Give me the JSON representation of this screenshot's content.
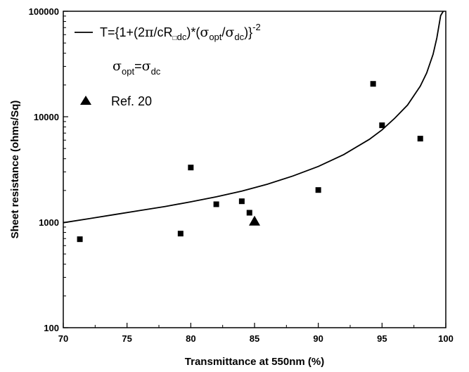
{
  "chart_data": {
    "type": "scatter",
    "title": "",
    "xlabel": "Transmittance at 550nm (%)",
    "ylabel": "Sheet resistance (ohms/Sq)",
    "xlim": [
      70,
      100
    ],
    "ylim": [
      100,
      100000
    ],
    "yscale": "log",
    "xticks": [
      "70",
      "75",
      "80",
      "85",
      "90",
      "95",
      "100"
    ],
    "yticks": [
      "100",
      "1000",
      "10000",
      "100000"
    ],
    "grid": false,
    "legend_position": "top-left",
    "series": [
      {
        "kind": "line",
        "label_parts": {
          "prefix": "T={1+(2",
          "pi": "π",
          "c_over": "/cR",
          "square": "□",
          "dc1": "dc",
          "mid": ")*(",
          "sigma1": "σ",
          "opt1": "opt",
          "slash": "/",
          "sigma2": "σ",
          "dc2": "dc",
          "close": ")}",
          "exp": "-2"
        },
        "condition_parts": {
          "sigma1": "σ",
          "opt": "opt",
          "eq": "=",
          "sigma2": "σ",
          "dc": "dc"
        },
        "x": [
          70,
          72,
          74,
          76,
          78,
          80,
          82,
          84,
          86,
          88,
          90,
          92,
          94,
          95,
          96,
          97,
          98,
          98.5,
          99,
          99.3,
          99.6,
          99.8
        ],
        "y": [
          990,
          1080,
          1180,
          1290,
          1410,
          1560,
          1740,
          1970,
          2290,
          2740,
          3380,
          4380,
          6100,
          7500,
          9700,
          12900,
          19500,
          26000,
          39000,
          56000,
          91000,
          100000
        ]
      },
      {
        "kind": "points",
        "marker": "square",
        "x": [
          71.3,
          79.2,
          80.0,
          82.0,
          84.0,
          84.6,
          90.0,
          94.3,
          95.0,
          98.0
        ],
        "y": [
          690,
          780,
          3300,
          1480,
          1580,
          1230,
          2020,
          20500,
          8300,
          6200
        ]
      },
      {
        "kind": "points",
        "marker": "triangle",
        "name": "Ref. 20",
        "x": [
          85.0
        ],
        "y": [
          1020
        ]
      }
    ]
  }
}
